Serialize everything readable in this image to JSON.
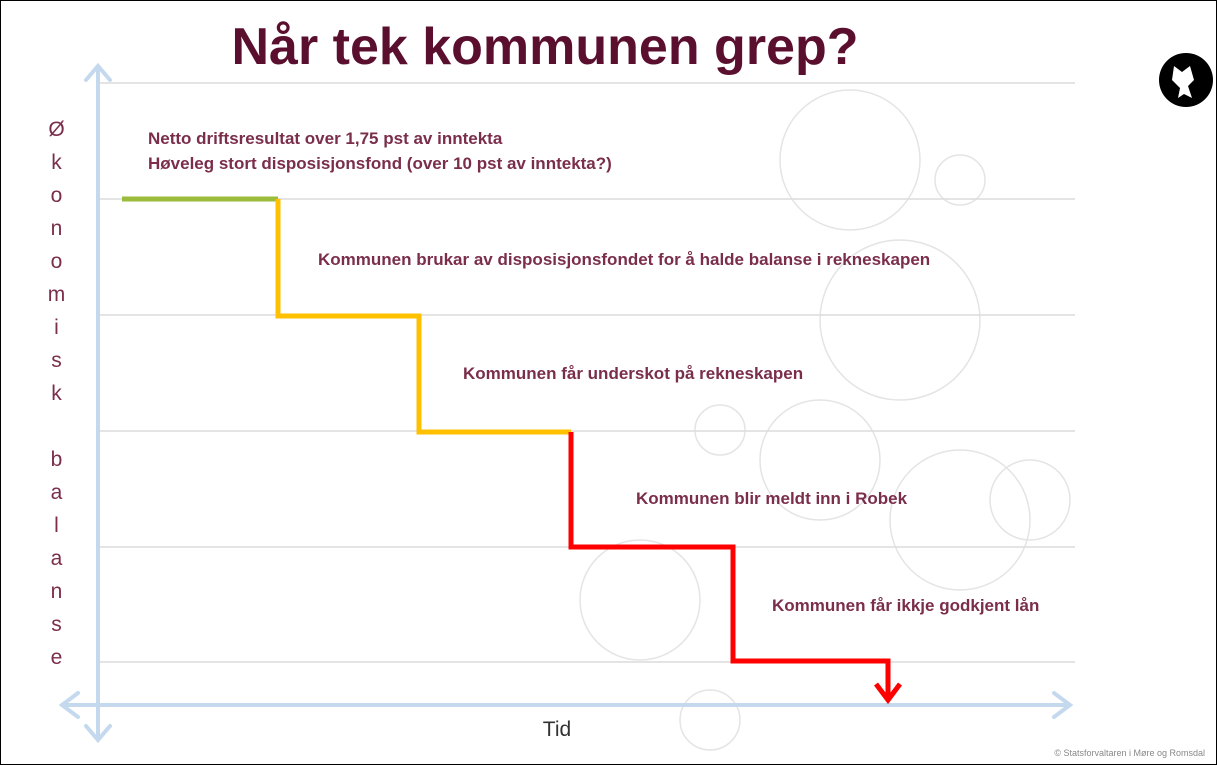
{
  "title": "Når tek kommunen grep?",
  "y_axis_label": "Økonomisk balanse",
  "x_axis_label": "Tid",
  "stages": [
    "Netto driftsresultat over 1,75 pst av inntekta",
    "Høveleg stort disposisjonsfond (over 10 pst av inntekta?)",
    "Kommunen brukar av disposisjonsfondet for å halde balanse i rekneskapen",
    "Kommunen får underskot på rekneskapen",
    "Kommunen blir meldt inn i Robek",
    "Kommunen får ikkje godkjent lån"
  ],
  "footer": "© Statsforvaltaren i Møre og Romsdal"
}
